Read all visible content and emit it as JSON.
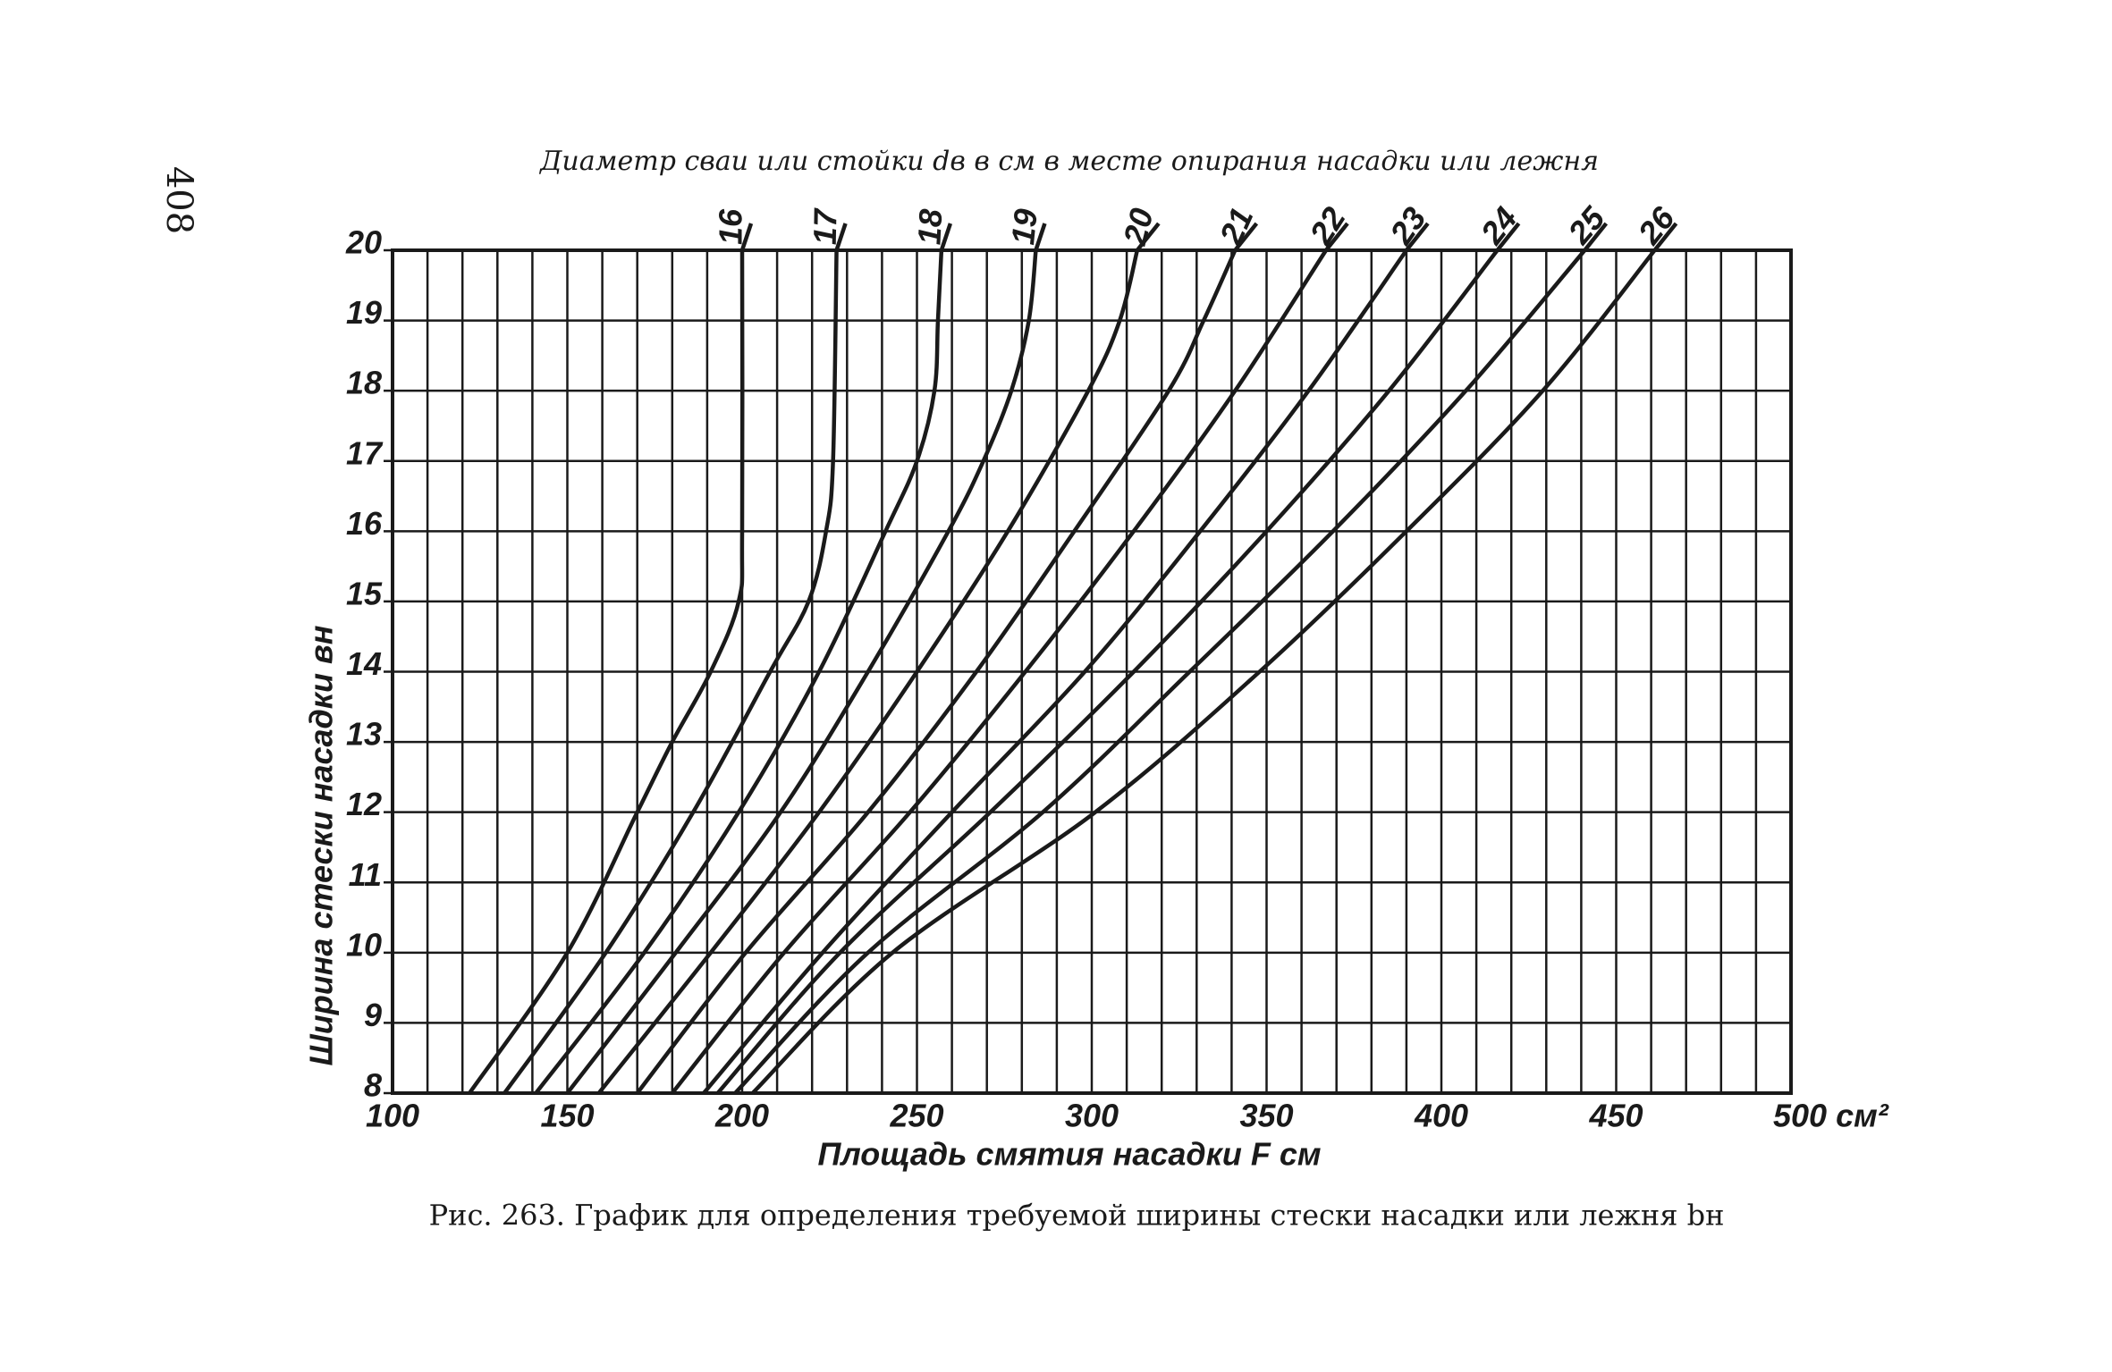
{
  "page_number": "408",
  "chart_data": {
    "type": "line",
    "title": "Диаметр сваи или стойки dв в см в месте опирания насадки или лежня",
    "x_label": "Площадь смятия насадки F см",
    "y_label": "Ширина стески насадки вн",
    "caption": "Рис. 263. График для определения требуемой ширины стески насадки или лежня bн",
    "xlim": [
      100,
      500
    ],
    "ylim": [
      8,
      20
    ],
    "xticks": [
      100,
      150,
      200,
      250,
      300,
      350,
      400,
      450,
      {
        "value": 500,
        "label": "500 см²"
      }
    ],
    "yticks": [
      8,
      9,
      10,
      11,
      12,
      13,
      14,
      15,
      16,
      17,
      18,
      19,
      20
    ],
    "grid": true,
    "color": "#1a1a1a",
    "series": [
      {
        "name": "16",
        "x": [
          122,
          150,
          170,
          180,
          191,
          199,
          200,
          200
        ],
        "values": [
          8,
          10,
          12,
          13,
          14,
          15,
          16,
          20
        ]
      },
      {
        "name": "17",
        "x": [
          132,
          161,
          186,
          208,
          219,
          224,
          226,
          227
        ],
        "values": [
          8,
          10,
          12,
          14,
          15,
          16,
          17,
          20
        ]
      },
      {
        "name": "18",
        "x": [
          141,
          172,
          199,
          222,
          241,
          250,
          255,
          256,
          257
        ],
        "values": [
          8,
          10,
          12,
          14,
          16,
          17,
          18,
          19,
          20
        ]
      },
      {
        "name": "19",
        "x": [
          150,
          181,
          211,
          236,
          259,
          269,
          277,
          282,
          284
        ],
        "values": [
          8,
          10,
          12,
          14,
          16,
          17,
          18,
          19,
          20
        ]
      },
      {
        "name": "20",
        "x": [
          159,
          191,
          222,
          250,
          276,
          299,
          308,
          313
        ],
        "values": [
          8,
          10,
          12,
          14,
          16,
          18,
          19,
          20
        ]
      },
      {
        "name": "21",
        "x": [
          170,
          201,
          236,
          267,
          295,
          322,
          332,
          341
        ],
        "values": [
          8,
          10,
          12,
          14,
          16,
          18,
          19,
          20
        ]
      },
      {
        "name": "22",
        "x": [
          180,
          212,
          248,
          281,
          312,
          341,
          367
        ],
        "values": [
          8,
          10,
          12,
          14,
          16,
          18,
          20
        ]
      },
      {
        "name": "23",
        "x": [
          189,
          223,
          260,
          298,
          331,
          362,
          390
        ],
        "values": [
          8,
          10,
          12,
          14,
          16,
          18,
          20
        ]
      },
      {
        "name": "24",
        "x": [
          193,
          228,
          271,
          312,
          350,
          385,
          416
        ],
        "values": [
          8,
          10,
          12,
          14,
          16,
          18,
          20
        ]
      },
      {
        "name": "25",
        "x": [
          198,
          236,
          286,
          328,
          369,
          407,
          441
        ],
        "values": [
          8,
          10,
          12,
          14,
          16,
          18,
          20
        ]
      },
      {
        "name": "26",
        "x": [
          203,
          243,
          301,
          348,
          390,
          429,
          461
        ],
        "values": [
          8,
          10,
          12,
          14,
          16,
          18,
          20
        ]
      }
    ]
  }
}
